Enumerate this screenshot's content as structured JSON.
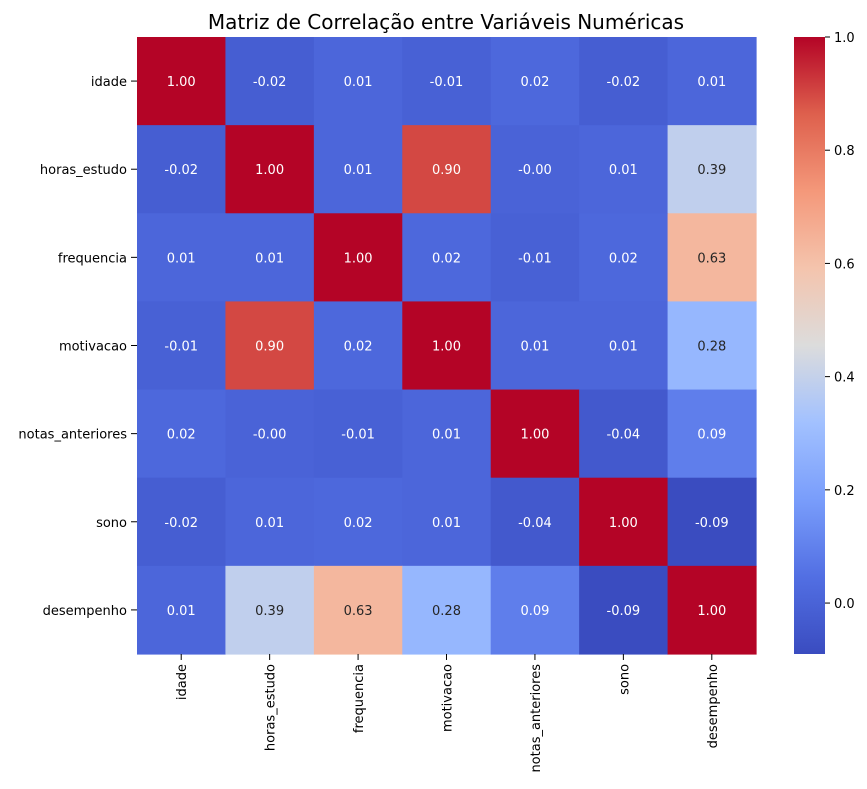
{
  "chart_data": {
    "type": "heatmap",
    "title": "Matriz de Correlação entre Variáveis Numéricas",
    "rows": [
      "idade",
      "horas_estudo",
      "frequencia",
      "motivacao",
      "notas_anteriores",
      "sono",
      "desempenho"
    ],
    "cols": [
      "idade",
      "horas_estudo",
      "frequencia",
      "motivacao",
      "notas_anteriores",
      "sono",
      "desempenho"
    ],
    "values": [
      [
        1.0,
        -0.02,
        0.01,
        -0.01,
        0.02,
        -0.02,
        0.01
      ],
      [
        -0.02,
        1.0,
        0.01,
        0.9,
        -0.0,
        0.01,
        0.39
      ],
      [
        0.01,
        0.01,
        1.0,
        0.02,
        -0.01,
        0.02,
        0.63
      ],
      [
        -0.01,
        0.9,
        0.02,
        1.0,
        0.01,
        0.01,
        0.28
      ],
      [
        0.02,
        -0.0,
        -0.01,
        0.01,
        1.0,
        -0.04,
        0.09
      ],
      [
        -0.02,
        0.01,
        0.02,
        0.01,
        -0.04,
        1.0,
        -0.09
      ],
      [
        0.01,
        0.39,
        0.63,
        0.28,
        0.09,
        -0.09,
        1.0
      ]
    ],
    "labels": [
      [
        "1.00",
        "-0.02",
        "0.01",
        "-0.01",
        "0.02",
        "-0.02",
        "0.01"
      ],
      [
        "-0.02",
        "1.00",
        "0.01",
        "0.90",
        "-0.00",
        "0.01",
        "0.39"
      ],
      [
        "0.01",
        "0.01",
        "1.00",
        "0.02",
        "-0.01",
        "0.02",
        "0.63"
      ],
      [
        "-0.01",
        "0.90",
        "0.02",
        "1.00",
        "0.01",
        "0.01",
        "0.28"
      ],
      [
        "0.02",
        "-0.00",
        "-0.01",
        "0.01",
        "1.00",
        "-0.04",
        "0.09"
      ],
      [
        "-0.02",
        "0.01",
        "0.02",
        "0.01",
        "-0.04",
        "1.00",
        "-0.09"
      ],
      [
        "0.01",
        "0.39",
        "0.63",
        "0.28",
        "0.09",
        "-0.09",
        "1.00"
      ]
    ],
    "colormap": "coolwarm",
    "vmin": -0.09,
    "vmax": 1.0,
    "colorbar": {
      "ticks": [
        0.0,
        0.2,
        0.4,
        0.6,
        0.8,
        1.0
      ],
      "tick_labels": [
        "0.0",
        "0.2",
        "0.4",
        "0.6",
        "0.8",
        "1.0"
      ]
    }
  }
}
